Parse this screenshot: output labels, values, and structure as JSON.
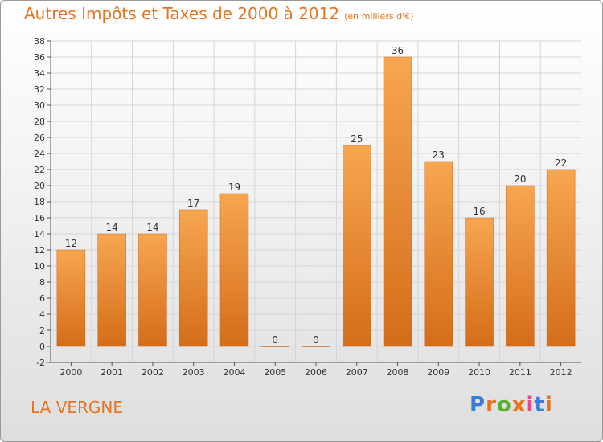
{
  "header": {
    "title": "Autres Impôts et Taxes de 2000 à 2012",
    "unit": "(en milliers d'€)"
  },
  "footer": {
    "place": "LA VERGNE",
    "logo_text": "Proxiti",
    "logo_colors": [
      "#3a7fd5",
      "#e8731f",
      "#58b030",
      "#e8731f",
      "#e64a8a",
      "#3a7fd5",
      "#e8731f"
    ]
  },
  "colors": {
    "title": "#e8731f",
    "bar_top": "#f7a64f",
    "bar_bottom": "#d46d1a",
    "grid": "#d5d5d5"
  },
  "chart_data": {
    "type": "bar",
    "title": "Autres Impôts et Taxes de 2000 à 2012",
    "subtitle": "(en milliers d'€)",
    "xlabel": "",
    "ylabel": "",
    "categories": [
      "2000",
      "2001",
      "2002",
      "2003",
      "2004",
      "2005",
      "2006",
      "2007",
      "2008",
      "2009",
      "2010",
      "2011",
      "2012"
    ],
    "values": [
      12,
      14,
      14,
      17,
      19,
      0,
      0,
      25,
      36,
      23,
      16,
      20,
      22
    ],
    "ylim": [
      -2,
      38
    ],
    "yticks": [
      -2,
      0,
      2,
      4,
      6,
      8,
      10,
      12,
      14,
      16,
      18,
      20,
      22,
      24,
      26,
      28,
      30,
      32,
      34,
      36,
      38
    ],
    "grid": true,
    "legend": "none"
  }
}
